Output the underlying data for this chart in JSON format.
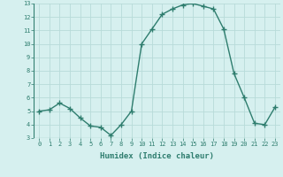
{
  "x": [
    0,
    1,
    2,
    3,
    4,
    5,
    6,
    7,
    8,
    9,
    10,
    11,
    12,
    13,
    14,
    15,
    16,
    17,
    18,
    19,
    20,
    21,
    22,
    23
  ],
  "y": [
    5.0,
    5.1,
    5.6,
    5.2,
    4.5,
    3.9,
    3.8,
    3.2,
    4.0,
    5.0,
    10.0,
    11.1,
    12.2,
    12.6,
    12.9,
    13.0,
    12.8,
    12.6,
    11.1,
    7.8,
    6.0,
    4.1,
    4.0,
    5.3
  ],
  "line_color": "#2e7d6e",
  "marker": "+",
  "marker_size": 4,
  "bg_color": "#d6f0ef",
  "grid_color": "#b8dbd9",
  "xlabel": "Humidex (Indice chaleur)",
  "ylim": [
    3,
    13
  ],
  "xlim": [
    -0.5,
    23.5
  ],
  "yticks": [
    3,
    4,
    5,
    6,
    7,
    8,
    9,
    10,
    11,
    12,
    13
  ],
  "xticks": [
    0,
    1,
    2,
    3,
    4,
    5,
    6,
    7,
    8,
    9,
    10,
    11,
    12,
    13,
    14,
    15,
    16,
    17,
    18,
    19,
    20,
    21,
    22,
    23
  ],
  "tick_fontsize": 5.0,
  "xlabel_fontsize": 6.5
}
